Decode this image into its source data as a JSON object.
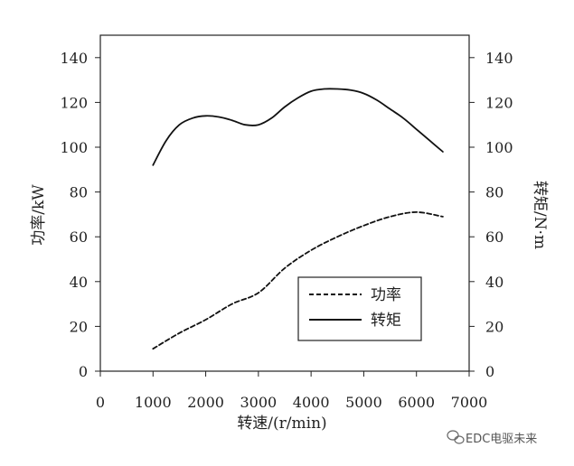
{
  "chart_data": {
    "type": "line",
    "x_axis": {
      "label": "转速/(r/min)",
      "range": [
        0,
        7000
      ],
      "ticks": [
        0,
        1000,
        2000,
        3000,
        4000,
        5000,
        6000,
        7000
      ]
    },
    "y_left_axis": {
      "label": "功率/kW",
      "range": [
        0,
        150
      ],
      "ticks": [
        0,
        20,
        40,
        60,
        80,
        100,
        120,
        140
      ]
    },
    "y_right_axis": {
      "label": "转矩/N·m",
      "range": [
        0,
        150
      ],
      "ticks": [
        0,
        20,
        40,
        60,
        80,
        100,
        120,
        140
      ]
    },
    "series": [
      {
        "name": "功率",
        "axis": "left",
        "style": "dashed",
        "x": [
          1000,
          1500,
          2000,
          2500,
          3000,
          3500,
          4000,
          4500,
          5000,
          5500,
          6000,
          6500
        ],
        "y": [
          10,
          17,
          23,
          30,
          35,
          46,
          54,
          60,
          65,
          69,
          71,
          69
        ]
      },
      {
        "name": "转矩",
        "axis": "right",
        "style": "solid",
        "x": [
          1000,
          1250,
          1500,
          1750,
          2000,
          2250,
          2500,
          2750,
          3000,
          3250,
          3500,
          3750,
          4000,
          4250,
          4500,
          4750,
          5000,
          5250,
          5500,
          5750,
          6000,
          6250,
          6500
        ],
        "y": [
          92,
          103,
          110,
          113,
          114,
          113.5,
          112,
          110,
          110,
          113,
          118,
          122,
          125,
          126,
          126,
          125.5,
          124,
          121,
          117,
          113,
          108,
          103,
          98
        ]
      }
    ],
    "legend": {
      "position": "center-right",
      "entries": [
        "功率",
        "转矩"
      ]
    },
    "grid": false
  },
  "colors": {
    "line": "#111111",
    "axis": "#222222",
    "background": "#ffffff"
  },
  "watermark": {
    "text": "EDC电驱未来",
    "icon": "wechat-icon"
  }
}
